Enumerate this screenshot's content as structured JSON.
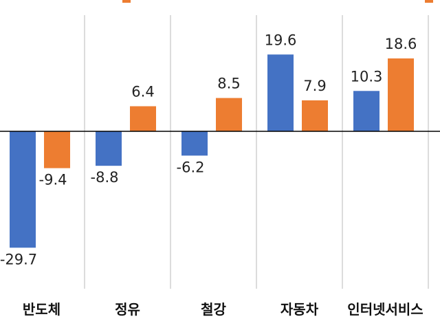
{
  "colors": {
    "series1": "#4472C4",
    "series2": "#ED7D31",
    "grid": "#D0D0D0",
    "axis": "#000000"
  },
  "legend": {
    "text": ""
  },
  "chart_data": {
    "type": "bar",
    "title": "",
    "xlabel": "",
    "ylabel": "",
    "ylim": [
      -33,
      25
    ],
    "categories": [
      "반도체",
      "정유",
      "철강",
      "자동차",
      "인터넷서비스"
    ],
    "series": [
      {
        "values": [
          -29.7,
          -8.8,
          -6.2,
          19.6,
          10.3
        ]
      },
      {
        "values": [
          -9.4,
          6.4,
          8.5,
          7.9,
          18.6
        ]
      }
    ],
    "value_labels": [
      [
        "-29.7",
        "-8.8",
        "-6.2",
        "19.6",
        "10.3"
      ],
      [
        "-9.4",
        "6.4",
        "8.5",
        "7.9",
        "18.6"
      ]
    ]
  }
}
